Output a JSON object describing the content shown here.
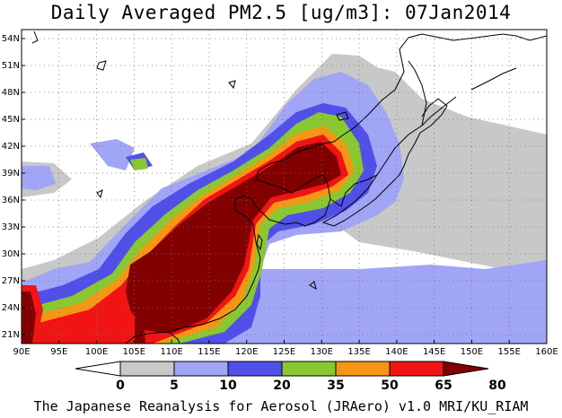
{
  "title": "Daily Averaged PM2.5 [ug/m3]: 07Jan2014",
  "footer": "The Japanese Reanalysis for Aerosol (JRAero) v1.0 MRI/KU_RIAM",
  "map": {
    "lon_range": [
      90,
      160
    ],
    "lat_range": [
      20,
      55
    ],
    "lon_ticks": [
      "90E",
      "95E",
      "100E",
      "105E",
      "110E",
      "115E",
      "120E",
      "125E",
      "130E",
      "135E",
      "140E",
      "145E",
      "150E",
      "155E",
      "160E"
    ],
    "lat_ticks": [
      "54N",
      "51N",
      "48N",
      "45N",
      "42N",
      "39N",
      "36N",
      "33N",
      "30N",
      "27N",
      "24N",
      "21N"
    ],
    "gridlines": "dotted"
  },
  "colorbar": {
    "labels": [
      "0",
      "5",
      "10",
      "20",
      "35",
      "50",
      "65",
      "80"
    ],
    "colors": [
      "#ffffff",
      "#c8c8c8",
      "#a0a5f5",
      "#5050e8",
      "#8ac832",
      "#f59614",
      "#f01414",
      "#820000"
    ]
  }
}
